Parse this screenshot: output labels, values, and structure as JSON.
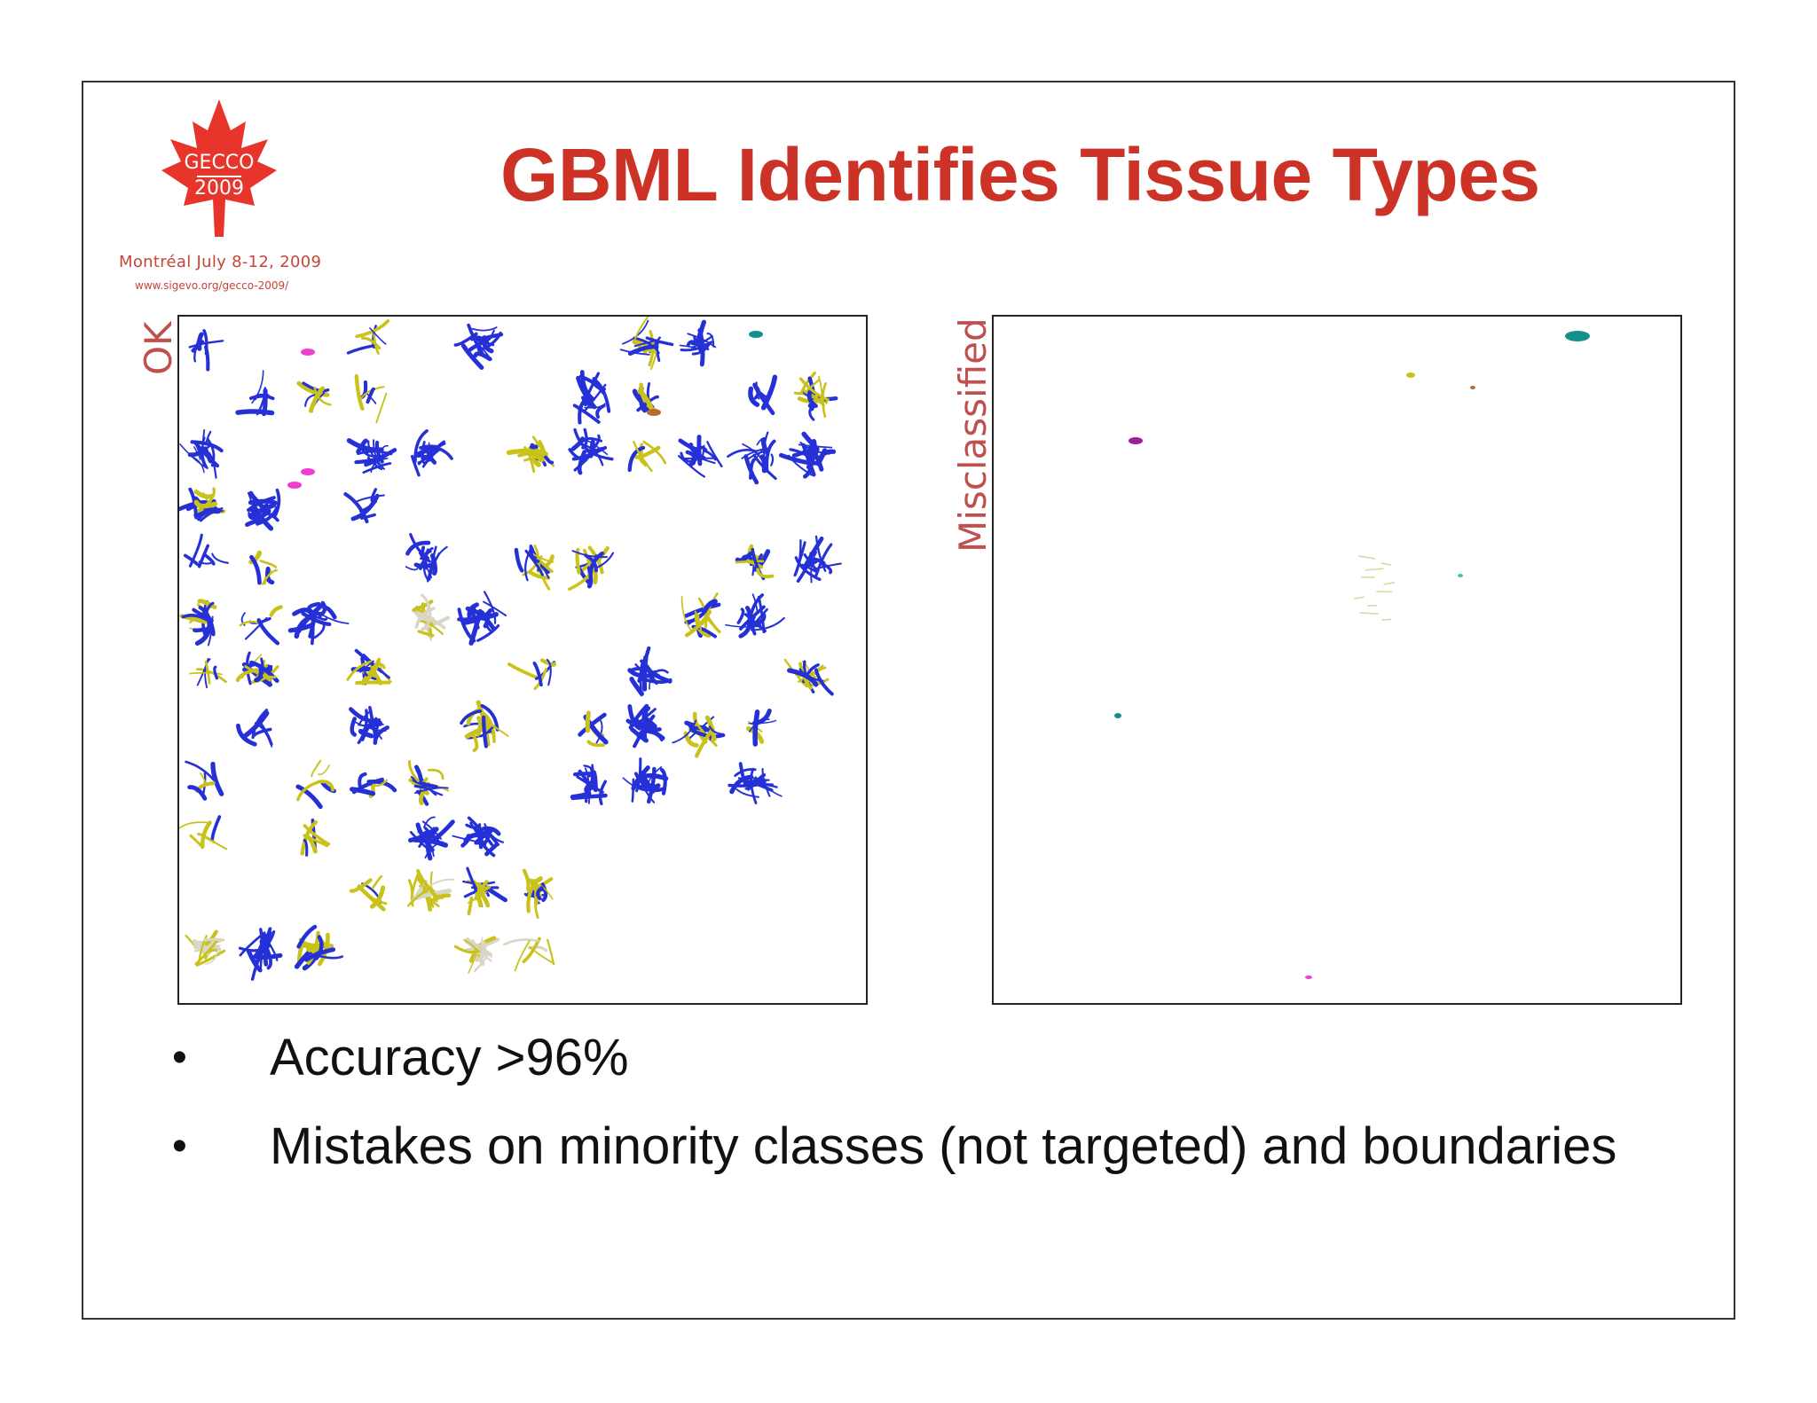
{
  "logo": {
    "text_top": "GECCO",
    "text_bottom": "2009",
    "line1": "Montréal July 8-12, 2009",
    "line2": "www.sigevo.org/gecco-2009/",
    "icon": "maple-leaf-icon",
    "color": "#e8352b"
  },
  "slide": {
    "title": "GBML Identifies Tissue Types",
    "title_color": "#cc3326"
  },
  "panels": {
    "ok_label": "OK",
    "misclassified_label": "Misclassified",
    "label_color": "#c0504d",
    "class_colors": [
      "#2531d6",
      "#c9c21a",
      "#ee3fd0",
      "#148f8a",
      "#b86b2c",
      "#3fcf82",
      "#d9d6c8"
    ]
  },
  "bullets": [
    {
      "text": "Accuracy >96%"
    },
    {
      "text": "Mistakes on minority classes (not targeted) and boundaries"
    }
  ]
}
